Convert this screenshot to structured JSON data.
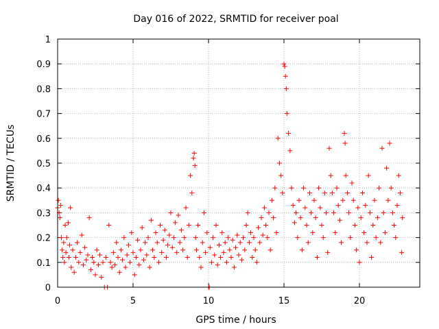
{
  "chart_data": {
    "type": "scatter",
    "title": "Day 016 of 2022, SRMTID for receiver poal",
    "xlabel": "GPS time / hours",
    "ylabel": "SRMTID / TECUs",
    "xlim": [
      0,
      24
    ],
    "ylim": [
      0,
      1
    ],
    "xticks": [
      0,
      5,
      10,
      15,
      20
    ],
    "xtick_labels": [
      "0",
      "5",
      "10",
      "15",
      "20"
    ],
    "yticks": [
      0,
      0.1,
      0.2,
      0.3,
      0.4,
      0.5,
      0.6,
      0.7,
      0.8,
      0.9,
      1
    ],
    "ytick_labels": [
      "0",
      "0.1",
      "0.2",
      "0.3",
      "0.4",
      "0.5",
      "0.6",
      "0.7",
      "0.8",
      "0.9",
      "1"
    ],
    "grid": true,
    "marker": "+",
    "marker_color": "#ff0000",
    "series": [
      {
        "name": "SRMTID",
        "points": [
          [
            0.0,
            0.32
          ],
          [
            0.05,
            0.35
          ],
          [
            0.1,
            0.3
          ],
          [
            0.15,
            0.28
          ],
          [
            0.2,
            0.33
          ],
          [
            0.25,
            0.2
          ],
          [
            0.3,
            0.15
          ],
          [
            0.35,
            0.12
          ],
          [
            0.4,
            0.18
          ],
          [
            0.45,
            0.1
          ],
          [
            0.5,
            0.25
          ],
          [
            0.55,
            0.14
          ],
          [
            0.6,
            0.2
          ],
          [
            0.7,
            0.26
          ],
          [
            0.75,
            0.12
          ],
          [
            0.8,
            0.17
          ],
          [
            0.85,
            0.32
          ],
          [
            0.9,
            0.08
          ],
          [
            1.0,
            0.15
          ],
          [
            1.1,
            0.06
          ],
          [
            1.2,
            0.12
          ],
          [
            1.3,
            0.18
          ],
          [
            1.4,
            0.1
          ],
          [
            1.5,
            0.14
          ],
          [
            1.6,
            0.21
          ],
          [
            1.7,
            0.09
          ],
          [
            1.8,
            0.16
          ],
          [
            1.9,
            0.11
          ],
          [
            2.0,
            0.13
          ],
          [
            2.1,
            0.28
          ],
          [
            2.2,
            0.07
          ],
          [
            2.3,
            0.12
          ],
          [
            2.4,
            0.1
          ],
          [
            2.5,
            0.05
          ],
          [
            2.6,
            0.15
          ],
          [
            2.7,
            0.09
          ],
          [
            2.8,
            0.13
          ],
          [
            2.9,
            0.04
          ],
          [
            3.0,
            0.1
          ],
          [
            3.1,
            0.0
          ],
          [
            3.2,
            0.12
          ],
          [
            3.3,
            0.0
          ],
          [
            3.4,
            0.25
          ],
          [
            3.5,
            0.1
          ],
          [
            3.6,
            0.08
          ],
          [
            3.7,
            0.14
          ],
          [
            3.8,
            0.09
          ],
          [
            3.9,
            0.18
          ],
          [
            4.0,
            0.12
          ],
          [
            4.1,
            0.06
          ],
          [
            4.2,
            0.15
          ],
          [
            4.3,
            0.11
          ],
          [
            4.4,
            0.2
          ],
          [
            4.5,
            0.08
          ],
          [
            4.6,
            0.13
          ],
          [
            4.7,
            0.17
          ],
          [
            4.8,
            0.1
          ],
          [
            4.9,
            0.22
          ],
          [
            5.0,
            0.14
          ],
          [
            5.1,
            0.05
          ],
          [
            5.2,
            0.12
          ],
          [
            5.3,
            0.19
          ],
          [
            5.4,
            0.09
          ],
          [
            5.5,
            0.15
          ],
          [
            5.6,
            0.24
          ],
          [
            5.7,
            0.11
          ],
          [
            5.8,
            0.18
          ],
          [
            5.9,
            0.13
          ],
          [
            6.0,
            0.2
          ],
          [
            6.1,
            0.08
          ],
          [
            6.2,
            0.27
          ],
          [
            6.3,
            0.15
          ],
          [
            6.4,
            0.12
          ],
          [
            6.5,
            0.22
          ],
          [
            6.6,
            0.18
          ],
          [
            6.7,
            0.1
          ],
          [
            6.8,
            0.25
          ],
          [
            6.9,
            0.14
          ],
          [
            7.0,
            0.19
          ],
          [
            7.1,
            0.23
          ],
          [
            7.2,
            0.12
          ],
          [
            7.3,
            0.17
          ],
          [
            7.4,
            0.21
          ],
          [
            7.5,
            0.3
          ],
          [
            7.6,
            0.16
          ],
          [
            7.7,
            0.2
          ],
          [
            7.8,
            0.26
          ],
          [
            7.9,
            0.14
          ],
          [
            8.0,
            0.29
          ],
          [
            8.1,
            0.18
          ],
          [
            8.2,
            0.23
          ],
          [
            8.3,
            0.15
          ],
          [
            8.4,
            0.2
          ],
          [
            8.5,
            0.32
          ],
          [
            8.6,
            0.12
          ],
          [
            8.7,
            0.25
          ],
          [
            8.8,
            0.45
          ],
          [
            8.9,
            0.38
          ],
          [
            9.0,
            0.52
          ],
          [
            9.05,
            0.54
          ],
          [
            9.1,
            0.49
          ],
          [
            9.15,
            0.2
          ],
          [
            9.2,
            0.15
          ],
          [
            9.3,
            0.25
          ],
          [
            9.4,
            0.12
          ],
          [
            9.5,
            0.08
          ],
          [
            9.6,
            0.18
          ],
          [
            9.7,
            0.3
          ],
          [
            9.8,
            0.14
          ],
          [
            9.9,
            0.22
          ],
          [
            10.0,
            0.0
          ],
          [
            10.05,
            0.0
          ],
          [
            10.1,
            0.16
          ],
          [
            10.2,
            0.1
          ],
          [
            10.3,
            0.2
          ],
          [
            10.4,
            0.13
          ],
          [
            10.5,
            0.25
          ],
          [
            10.6,
            0.09
          ],
          [
            10.7,
            0.17
          ],
          [
            10.8,
            0.12
          ],
          [
            10.9,
            0.22
          ],
          [
            11.0,
            0.14
          ],
          [
            11.1,
            0.18
          ],
          [
            11.2,
            0.1
          ],
          [
            11.3,
            0.2
          ],
          [
            11.4,
            0.15
          ],
          [
            11.5,
            0.12
          ],
          [
            11.6,
            0.19
          ],
          [
            11.7,
            0.08
          ],
          [
            11.8,
            0.16
          ],
          [
            11.9,
            0.21
          ],
          [
            12.0,
            0.13
          ],
          [
            12.1,
            0.18
          ],
          [
            12.2,
            0.11
          ],
          [
            12.3,
            0.2
          ],
          [
            12.4,
            0.15
          ],
          [
            12.5,
            0.25
          ],
          [
            12.6,
            0.3
          ],
          [
            12.7,
            0.18
          ],
          [
            12.8,
            0.22
          ],
          [
            12.9,
            0.12
          ],
          [
            13.0,
            0.2
          ],
          [
            13.1,
            0.15
          ],
          [
            13.2,
            0.1
          ],
          [
            13.3,
            0.24
          ],
          [
            13.4,
            0.18
          ],
          [
            13.5,
            0.28
          ],
          [
            13.6,
            0.21
          ],
          [
            13.7,
            0.32
          ],
          [
            13.8,
            0.25
          ],
          [
            13.9,
            0.2
          ],
          [
            14.0,
            0.3
          ],
          [
            14.1,
            0.15
          ],
          [
            14.2,
            0.35
          ],
          [
            14.3,
            0.28
          ],
          [
            14.4,
            0.4
          ],
          [
            14.5,
            0.22
          ],
          [
            14.6,
            0.6
          ],
          [
            14.7,
            0.5
          ],
          [
            14.8,
            0.45
          ],
          [
            14.9,
            0.38
          ],
          [
            15.0,
            0.9
          ],
          [
            15.05,
            0.89
          ],
          [
            15.1,
            0.85
          ],
          [
            15.15,
            0.8
          ],
          [
            15.2,
            0.7
          ],
          [
            15.3,
            0.62
          ],
          [
            15.4,
            0.55
          ],
          [
            15.5,
            0.4
          ],
          [
            15.6,
            0.33
          ],
          [
            15.7,
            0.26
          ],
          [
            15.8,
            0.3
          ],
          [
            15.9,
            0.2
          ],
          [
            16.0,
            0.35
          ],
          [
            16.1,
            0.28
          ],
          [
            16.2,
            0.15
          ],
          [
            16.3,
            0.4
          ],
          [
            16.4,
            0.32
          ],
          [
            16.5,
            0.25
          ],
          [
            16.6,
            0.18
          ],
          [
            16.7,
            0.38
          ],
          [
            16.8,
            0.3
          ],
          [
            16.9,
            0.22
          ],
          [
            17.0,
            0.35
          ],
          [
            17.1,
            0.28
          ],
          [
            17.2,
            0.12
          ],
          [
            17.3,
            0.4
          ],
          [
            17.4,
            0.32
          ],
          [
            17.5,
            0.25
          ],
          [
            17.6,
            0.2
          ],
          [
            17.7,
            0.38
          ],
          [
            17.8,
            0.3
          ],
          [
            17.9,
            0.14
          ],
          [
            18.0,
            0.56
          ],
          [
            18.1,
            0.45
          ],
          [
            18.2,
            0.38
          ],
          [
            18.3,
            0.3
          ],
          [
            18.4,
            0.22
          ],
          [
            18.5,
            0.4
          ],
          [
            18.6,
            0.33
          ],
          [
            18.7,
            0.27
          ],
          [
            18.8,
            0.18
          ],
          [
            18.9,
            0.35
          ],
          [
            19.0,
            0.62
          ],
          [
            19.05,
            0.58
          ],
          [
            19.1,
            0.45
          ],
          [
            19.2,
            0.38
          ],
          [
            19.3,
            0.3
          ],
          [
            19.4,
            0.2
          ],
          [
            19.5,
            0.42
          ],
          [
            19.6,
            0.35
          ],
          [
            19.7,
            0.25
          ],
          [
            19.8,
            0.15
          ],
          [
            19.9,
            0.32
          ],
          [
            20.0,
            0.1
          ],
          [
            20.1,
            0.28
          ],
          [
            20.2,
            0.38
          ],
          [
            20.3,
            0.22
          ],
          [
            20.4,
            0.33
          ],
          [
            20.5,
            0.18
          ],
          [
            20.6,
            0.45
          ],
          [
            20.7,
            0.3
          ],
          [
            20.8,
            0.12
          ],
          [
            20.9,
            0.25
          ],
          [
            21.0,
            0.35
          ],
          [
            21.1,
            0.2
          ],
          [
            21.2,
            0.28
          ],
          [
            21.3,
            0.4
          ],
          [
            21.4,
            0.18
          ],
          [
            21.5,
            0.56
          ],
          [
            21.6,
            0.3
          ],
          [
            21.7,
            0.22
          ],
          [
            21.8,
            0.48
          ],
          [
            21.9,
            0.35
          ],
          [
            22.0,
            0.58
          ],
          [
            22.1,
            0.4
          ],
          [
            22.2,
            0.3
          ],
          [
            22.3,
            0.25
          ],
          [
            22.4,
            0.2
          ],
          [
            22.5,
            0.33
          ],
          [
            22.6,
            0.45
          ],
          [
            22.7,
            0.38
          ],
          [
            22.8,
            0.14
          ],
          [
            22.85,
            0.28
          ]
        ]
      }
    ]
  }
}
